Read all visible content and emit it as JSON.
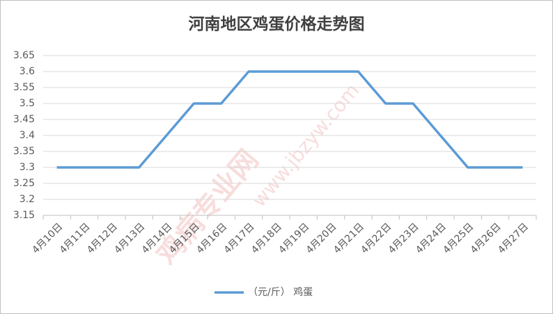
{
  "watermark": [
    "鸡病专业网",
    "www.jbzyw.com"
  ],
  "chart_data": {
    "type": "line",
    "title": "河南地区鸡蛋价格走势图",
    "categories": [
      "4月10日",
      "4月11日",
      "4月12日",
      "4月13日",
      "4月14日",
      "4月15日",
      "4月16日",
      "4月17日",
      "4月18日",
      "4月19日",
      "4月20日",
      "4月21日",
      "4月22日",
      "4月23日",
      "4月24日",
      "4月25日",
      "4月26日",
      "4月27日"
    ],
    "series": [
      {
        "name": "（元/斤） 鸡蛋",
        "color": "#5b9bd5",
        "values": [
          3.3,
          3.3,
          3.3,
          3.3,
          3.4,
          3.5,
          3.5,
          3.6,
          3.6,
          3.6,
          3.6,
          3.6,
          3.5,
          3.5,
          3.4,
          3.3,
          3.3,
          3.3
        ]
      }
    ],
    "ylim": [
      3.15,
      3.65
    ],
    "yticks": [
      3.15,
      3.2,
      3.25,
      3.3,
      3.35,
      3.4,
      3.45,
      3.5,
      3.55,
      3.6,
      3.65
    ],
    "grid": true,
    "legend": "bottom"
  }
}
